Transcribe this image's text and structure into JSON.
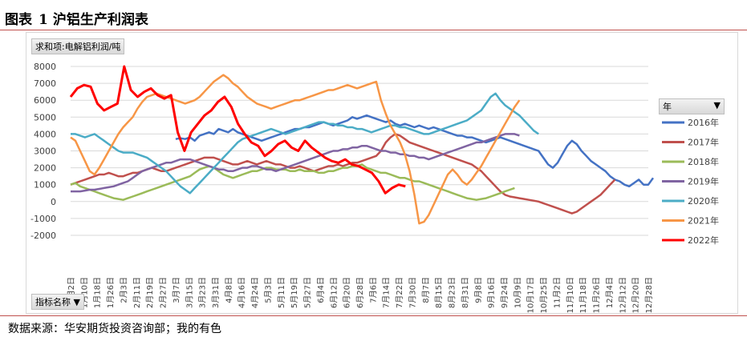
{
  "figure_title": {
    "prefix": "图表",
    "number": "1",
    "text": "沪铝生产利润表"
  },
  "field_buttons": {
    "value_field": "求和项:电解铝利润/吨",
    "category_field": "指标名称",
    "series_field": "年"
  },
  "source_text": "数据来源：华安期货投资咨询部；我的有色",
  "colors": {
    "accent_rule": "#c0504d",
    "grid": "#d9d9d9"
  },
  "chart_data": {
    "type": "line",
    "ylim": [
      -2000,
      8000
    ],
    "yticks": [
      8000,
      7000,
      6000,
      5000,
      4000,
      3000,
      2000,
      1000,
      0,
      -1000,
      -2000
    ],
    "x_ticks": [
      "1月2日",
      "1月10日",
      "1月18日",
      "1月26日",
      "2月3日",
      "2月11日",
      "2月19日",
      "2月27日",
      "3月7日",
      "3月15日",
      "3月23日",
      "3月31日",
      "4月8日",
      "4月16日",
      "4月24日",
      "5月3日",
      "5月11日",
      "5月19日",
      "5月27日",
      "6月4日",
      "6月12日",
      "6月20日",
      "6月28日",
      "7月6日",
      "7月14日",
      "7月22日",
      "7月30日",
      "8月7日",
      "8月15日",
      "8月23日",
      "8月31日",
      "9月8日",
      "9月16日",
      "9月24日",
      "10月9日",
      "10月17日",
      "10月25日",
      "11月2日",
      "11月10日",
      "11月18日",
      "11月26日",
      "12月4日",
      "12月12日",
      "12月20日",
      "12月28日"
    ],
    "legend_position": "right",
    "series": [
      {
        "name": "2016年",
        "color": "#4472c4",
        "x_start": 22,
        "values": [
          3700,
          3750,
          3700,
          3800,
          3600,
          3900,
          4000,
          4100,
          4000,
          4300,
          4200,
          4100,
          4300,
          4100,
          4000,
          3900,
          3800,
          3700,
          3600,
          3700,
          3800,
          3900,
          4000,
          4100,
          4200,
          4300,
          4300,
          4400,
          4400,
          4500,
          4600,
          4700,
          4600,
          4500,
          4600,
          4700,
          4800,
          5000,
          4900,
          5000,
          5100,
          5000,
          4900,
          4800,
          4700,
          4800,
          4600,
          4500,
          4600,
          4500,
          4400,
          4500,
          4400,
          4300,
          4400,
          4300,
          4200,
          4100,
          4000,
          3900,
          3900,
          3800,
          3800,
          3700,
          3600,
          3500,
          3600,
          3700,
          3800,
          3700,
          3600,
          3500,
          3400,
          3300,
          3200,
          3100,
          3000,
          2600,
          2200,
          2000,
          2300,
          2800,
          3300,
          3600,
          3400,
          3000,
          2700,
          2400,
          2200,
          2000,
          1800,
          1500,
          1300,
          1200,
          1000,
          900,
          1100,
          1300,
          1000,
          1000,
          1400
        ]
      },
      {
        "name": "2017年",
        "color": "#c0504d",
        "x_start": 0,
        "values": [
          1000,
          1100,
          1200,
          1300,
          1400,
          1500,
          1600,
          1600,
          1700,
          1600,
          1500,
          1500,
          1600,
          1700,
          1700,
          1800,
          1900,
          2000,
          1900,
          1800,
          1800,
          1900,
          2000,
          2100,
          2200,
          2300,
          2400,
          2500,
          2600,
          2600,
          2600,
          2500,
          2400,
          2300,
          2200,
          2200,
          2300,
          2400,
          2300,
          2200,
          2300,
          2400,
          2300,
          2200,
          2200,
          2100,
          2000,
          2000,
          2100,
          2000,
          1900,
          1800,
          1900,
          2000,
          2100,
          2100,
          2200,
          2100,
          2200,
          2300,
          2300,
          2400,
          2500,
          2600,
          2700,
          3000,
          3500,
          3800,
          4000,
          3900,
          3700,
          3500,
          3400,
          3300,
          3200,
          3100,
          3000,
          2900,
          2800,
          2700,
          2600,
          2500,
          2400,
          2300,
          2200,
          2000,
          1800,
          1500,
          1200,
          900,
          600,
          400,
          300,
          250,
          200,
          150,
          100,
          50,
          0,
          -100,
          -200,
          -300,
          -400,
          -500,
          -600,
          -700,
          -600,
          -400,
          -200,
          0,
          200,
          400,
          700,
          1000,
          1300
        ]
      },
      {
        "name": "2018年",
        "color": "#9bbb59",
        "x_start": 0,
        "values": [
          1000,
          1100,
          900,
          800,
          700,
          600,
          500,
          400,
          300,
          200,
          150,
          100,
          200,
          300,
          400,
          500,
          600,
          700,
          800,
          900,
          1000,
          1100,
          1200,
          1300,
          1400,
          1500,
          1700,
          1900,
          2000,
          2100,
          2000,
          1800,
          1600,
          1500,
          1400,
          1500,
          1600,
          1700,
          1800,
          1800,
          1900,
          2000,
          2000,
          1900,
          1900,
          1900,
          1800,
          1800,
          1900,
          1800,
          1800,
          1800,
          1700,
          1700,
          1800,
          1800,
          1900,
          2000,
          2000,
          2100,
          2100,
          2200,
          2000,
          1900,
          1800,
          1700,
          1700,
          1600,
          1500,
          1400,
          1400,
          1300,
          1200,
          1200,
          1100,
          1000,
          900,
          800,
          700,
          600,
          500,
          400,
          300,
          200,
          150,
          100,
          150,
          200,
          300,
          400,
          500,
          600,
          700,
          800
        ]
      },
      {
        "name": "2019年",
        "color": "#8064a2",
        "x_start": 0,
        "values": [
          600,
          600,
          600,
          650,
          700,
          700,
          750,
          800,
          850,
          900,
          1000,
          1100,
          1200,
          1400,
          1600,
          1800,
          1900,
          2000,
          2100,
          2200,
          2300,
          2300,
          2400,
          2500,
          2500,
          2500,
          2400,
          2300,
          2200,
          2100,
          2000,
          1900,
          1900,
          1800,
          1800,
          1900,
          2000,
          2000,
          2100,
          2100,
          2000,
          1900,
          1900,
          1800,
          1900,
          2000,
          2100,
          2200,
          2300,
          2400,
          2500,
          2600,
          2700,
          2800,
          2900,
          3000,
          3000,
          3100,
          3100,
          3200,
          3200,
          3300,
          3300,
          3200,
          3100,
          3000,
          3000,
          2900,
          2900,
          2800,
          2800,
          2700,
          2700,
          2600,
          2600,
          2500,
          2600,
          2700,
          2800,
          2900,
          3000,
          3100,
          3200,
          3300,
          3400,
          3500,
          3500,
          3600,
          3700,
          3800,
          3900,
          4000,
          4000,
          4000,
          3900
        ]
      },
      {
        "name": "2020年",
        "color": "#4bacc6",
        "x_start": 0,
        "values": [
          4000,
          4000,
          3900,
          3800,
          3900,
          4000,
          3800,
          3600,
          3400,
          3200,
          3000,
          2900,
          2900,
          2900,
          2800,
          2700,
          2600,
          2400,
          2200,
          2000,
          1800,
          1500,
          1200,
          900,
          700,
          500,
          800,
          1100,
          1400,
          1700,
          2000,
          2300,
          2600,
          2900,
          3200,
          3500,
          3700,
          3800,
          3900,
          4000,
          4100,
          4200,
          4300,
          4200,
          4100,
          4000,
          4100,
          4200,
          4300,
          4400,
          4500,
          4600,
          4700,
          4700,
          4600,
          4600,
          4500,
          4500,
          4400,
          4400,
          4300,
          4300,
          4200,
          4100,
          4200,
          4300,
          4400,
          4500,
          4500,
          4400,
          4400,
          4300,
          4200,
          4100,
          4000,
          4000,
          4100,
          4200,
          4300,
          4400,
          4500,
          4600,
          4700,
          4800,
          5000,
          5200,
          5400,
          5800,
          6200,
          6400,
          6000,
          5700,
          5500,
          5300,
          5100,
          4800,
          4500,
          4200,
          4000
        ]
      },
      {
        "name": "2021年",
        "color": "#f79646",
        "x_start": 0,
        "values": [
          3800,
          3600,
          3000,
          2400,
          1800,
          1600,
          2000,
          2500,
          3000,
          3500,
          4000,
          4400,
          4700,
          5000,
          5500,
          5900,
          6200,
          6300,
          6400,
          6300,
          6200,
          6100,
          6000,
          5900,
          5800,
          5900,
          6000,
          6200,
          6500,
          6800,
          7100,
          7300,
          7500,
          7300,
          7000,
          6800,
          6500,
          6200,
          6000,
          5800,
          5700,
          5600,
          5500,
          5600,
          5700,
          5800,
          5900,
          6000,
          6000,
          6100,
          6200,
          6300,
          6400,
          6500,
          6600,
          6600,
          6700,
          6800,
          6900,
          6800,
          6700,
          6800,
          6900,
          7000,
          7100,
          6000,
          5200,
          4500,
          4000,
          3500,
          2800,
          1800,
          400,
          -1300,
          -1200,
          -800,
          -200,
          400,
          1000,
          1600,
          1900,
          1600,
          1200,
          1000,
          1300,
          1700,
          2100,
          2600,
          3100,
          3600,
          4100,
          4600,
          5100,
          5600,
          6000
        ]
      },
      {
        "name": "2022年",
        "color": "#ff0000",
        "x_start": 0,
        "values": [
          6200,
          6700,
          6900,
          6800,
          5800,
          5400,
          5600,
          5800,
          8000,
          6600,
          6200,
          6500,
          6700,
          6300,
          6100,
          6300,
          4100,
          3000,
          4100,
          4600,
          5100,
          5400,
          5900,
          6200,
          5600,
          4600,
          4000,
          3500,
          3300,
          2700,
          3000,
          3400,
          3600,
          3200,
          3000,
          3600,
          3200,
          2900,
          2600,
          2400,
          2300,
          2500,
          2200,
          2100,
          1900,
          1700,
          1200,
          500,
          800,
          1000,
          900
        ]
      }
    ]
  }
}
